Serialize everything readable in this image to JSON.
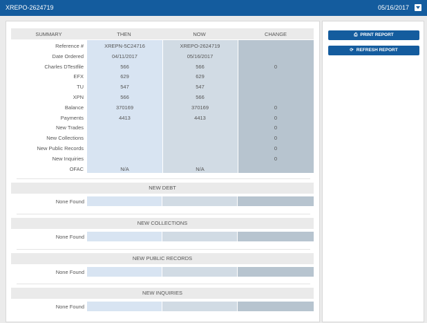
{
  "topbar": {
    "title": "XREPO-2624719",
    "date": "05/16/2017"
  },
  "header": {
    "summary": "SUMMARY",
    "then": "THEN",
    "now": "NOW",
    "change": "CHANGE"
  },
  "rows": [
    {
      "label": "Reference #",
      "then": "XREPN-5C24716",
      "now": "XREPO-2624719",
      "change": ""
    },
    {
      "label": "Date Ordered",
      "then": "04/11/2017",
      "now": "05/16/2017",
      "change": ""
    },
    {
      "label": "Charles DTestfile",
      "then": "566",
      "now": "566",
      "change": "0"
    },
    {
      "label": "EFX",
      "then": "629",
      "now": "629",
      "change": ""
    },
    {
      "label": "TU",
      "then": "547",
      "now": "547",
      "change": ""
    },
    {
      "label": "XPN",
      "then": "566",
      "now": "566",
      "change": ""
    },
    {
      "label": "Balance",
      "then": "370169",
      "now": "370169",
      "change": "0"
    },
    {
      "label": "Payments",
      "then": "4413",
      "now": "4413",
      "change": "0"
    },
    {
      "label": "New Trades",
      "then": "",
      "now": "",
      "change": "0"
    },
    {
      "label": "New Collections",
      "then": "",
      "now": "",
      "change": "0"
    },
    {
      "label": "New Public Records",
      "then": "",
      "now": "",
      "change": "0"
    },
    {
      "label": "New Inquiries",
      "then": "",
      "now": "",
      "change": "0"
    },
    {
      "label": "OFAC",
      "then": "N/A",
      "now": "N/A",
      "change": ""
    }
  ],
  "sections": [
    {
      "title": "NEW DEBT",
      "row_label": "None Found"
    },
    {
      "title": "NEW COLLECTIONS",
      "row_label": "None Found"
    },
    {
      "title": "NEW PUBLIC RECORDS",
      "row_label": "None Found"
    },
    {
      "title": "NEW INQUIRIES",
      "row_label": "None Found"
    }
  ],
  "actions": {
    "print_label": "PRINT REPORT",
    "print_icon": "printer-icon",
    "refresh_label": "REFRESH REPORT",
    "refresh_icon": "refresh-icon"
  },
  "colors": {
    "brand": "#145c9e",
    "then_col": "#d8e4f2",
    "now_col": "#d1dbe4",
    "change_col": "#b7c4cf"
  }
}
